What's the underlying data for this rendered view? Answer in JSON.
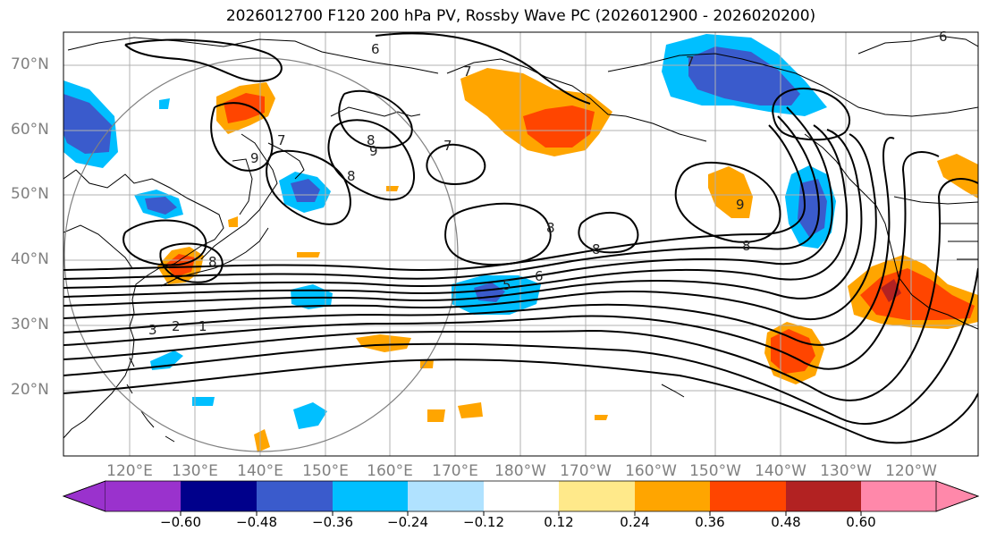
{
  "title": "2026012700 F120 200 hPa PV, Rossby Wave PC (2026012900 - 2026020200)",
  "latitude_labels": [
    "70°N",
    "60°N",
    "50°N",
    "40°N",
    "30°N",
    "20°N"
  ],
  "longitude_labels": [
    "120°E",
    "130°E",
    "140°E",
    "150°E",
    "160°E",
    "170°E",
    "180°W",
    "170°W",
    "160°W",
    "150°W",
    "140°W",
    "130°W",
    "120°W"
  ],
  "colorbar": {
    "ticks": [
      "−0.60",
      "−0.48",
      "−0.36",
      "−0.24",
      "−0.12",
      "0.12",
      "0.24",
      "0.36",
      "0.48",
      "0.60"
    ],
    "colors": [
      "#9a32cd",
      "#00008b",
      "#3a5bcc",
      "#00bfff",
      "#b0e2ff",
      "#ffffff",
      "#ffe98a",
      "#ffa500",
      "#ff4500",
      "#b22222",
      "#ff88aa"
    ]
  },
  "contour_labels": [
    "6",
    "7",
    "7",
    "8",
    "8",
    "9",
    "9",
    "8",
    "8",
    "8",
    "9",
    "8",
    "7",
    "6",
    "5",
    "3",
    "2",
    "1",
    "7",
    "6"
  ]
}
